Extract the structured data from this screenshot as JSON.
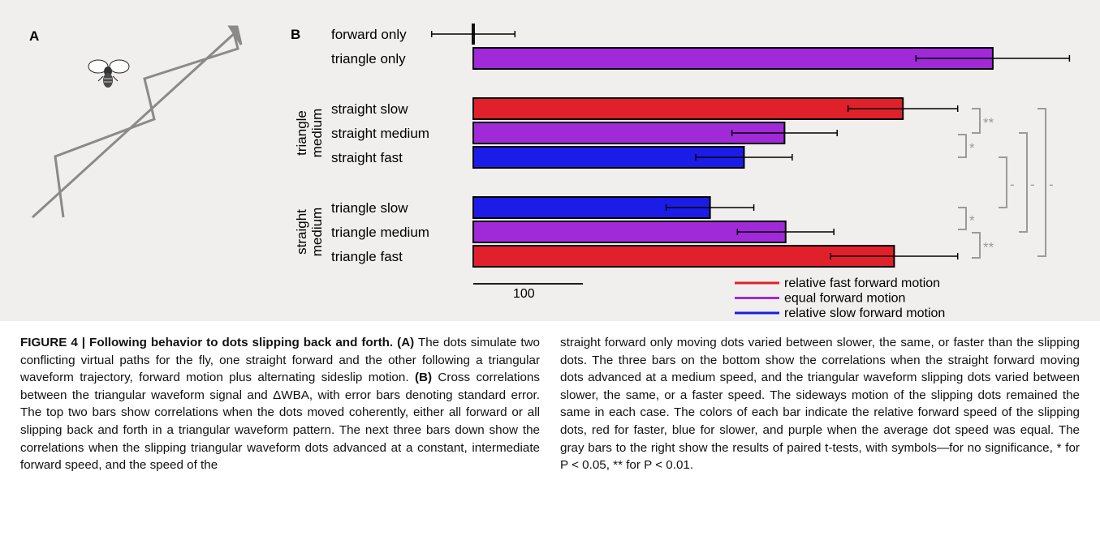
{
  "panel_a": {
    "label": "A"
  },
  "panel_b": {
    "label": "B"
  },
  "chart_data": {
    "type": "bar",
    "orientation": "horizontal",
    "groups": [
      {
        "label": "",
        "bars": [
          "forward only",
          "triangle only"
        ]
      },
      {
        "label": "triangle medium",
        "bars": [
          "straight slow",
          "straight medium",
          "straight fast"
        ]
      },
      {
        "label": "straight medium",
        "bars": [
          "triangle slow",
          "triangle medium",
          "triangle fast"
        ]
      }
    ],
    "categories": [
      "forward only",
      "triangle only",
      "straight slow",
      "straight medium",
      "straight fast",
      "triangle slow",
      "triangle medium",
      "triangle fast"
    ],
    "values": [
      0,
      474,
      392,
      284,
      247,
      216,
      285,
      384
    ],
    "errors": [
      38,
      70,
      50,
      48,
      44,
      40,
      44,
      58
    ],
    "colors": [
      "#111111",
      "#a02ad8",
      "#e0202a",
      "#a02ad8",
      "#1c1ce8",
      "#1c1ce8",
      "#a02ad8",
      "#e0202a"
    ],
    "scale_bar": {
      "label": "100",
      "value": 100
    },
    "legend": [
      {
        "label": "relative fast forward motion",
        "color": "#e0202a"
      },
      {
        "label": "equal forward motion",
        "color": "#a02ad8"
      },
      {
        "label": "relative slow forward motion",
        "color": "#1c1ce8"
      }
    ],
    "significance": [
      {
        "pair": [
          "straight slow",
          "straight medium"
        ],
        "symbol": "**"
      },
      {
        "pair": [
          "straight medium",
          "straight fast"
        ],
        "symbol": "*"
      },
      {
        "pair": [
          "triangle slow",
          "triangle medium"
        ],
        "symbol": "*"
      },
      {
        "pair": [
          "triangle medium",
          "triangle fast"
        ],
        "symbol": "**"
      },
      {
        "pair": [
          "straight fast",
          "triangle slow"
        ],
        "symbol": "-"
      },
      {
        "pair": [
          "straight medium",
          "triangle medium"
        ],
        "symbol": "-"
      },
      {
        "pair": [
          "straight slow",
          "triangle fast"
        ],
        "symbol": "-"
      }
    ]
  },
  "caption": {
    "figure_label": "FIGURE 4 | Following behavior to dots slipping back and forth.",
    "a_label": "(A)",
    "a_text": "The dots simulate two conflicting virtual paths for the fly, one straight forward and the other following a triangular waveform trajectory, forward motion plus alternating sideslip motion.",
    "b_label": "(B)",
    "b_text": "Cross correlations between the triangular waveform signal and ΔWBA, with error bars denoting standard error. The top two bars show correlations when the dots moved coherently, either all forward or all slipping back and forth in a triangular waveform pattern. The next three bars down show the correlations when the slipping triangular waveform dots advanced at a constant, intermediate forward speed, and the speed of the",
    "right_text": "straight forward only moving dots varied between slower, the same, or faster than the slipping dots. The three bars on the bottom show the correlations when the straight forward moving dots advanced at a medium speed, and the triangular waveform slipping dots varied between slower, the same, or a faster speed. The sideways motion of the slipping dots remained the same in each case. The colors of each bar indicate the relative forward speed of the slipping dots, red for faster, blue for slower, and purple when the average dot speed was equal. The gray bars to the right show the results of paired t-tests, with symbols—for no significance, * for P < 0.05, ** for P < 0.01."
  }
}
